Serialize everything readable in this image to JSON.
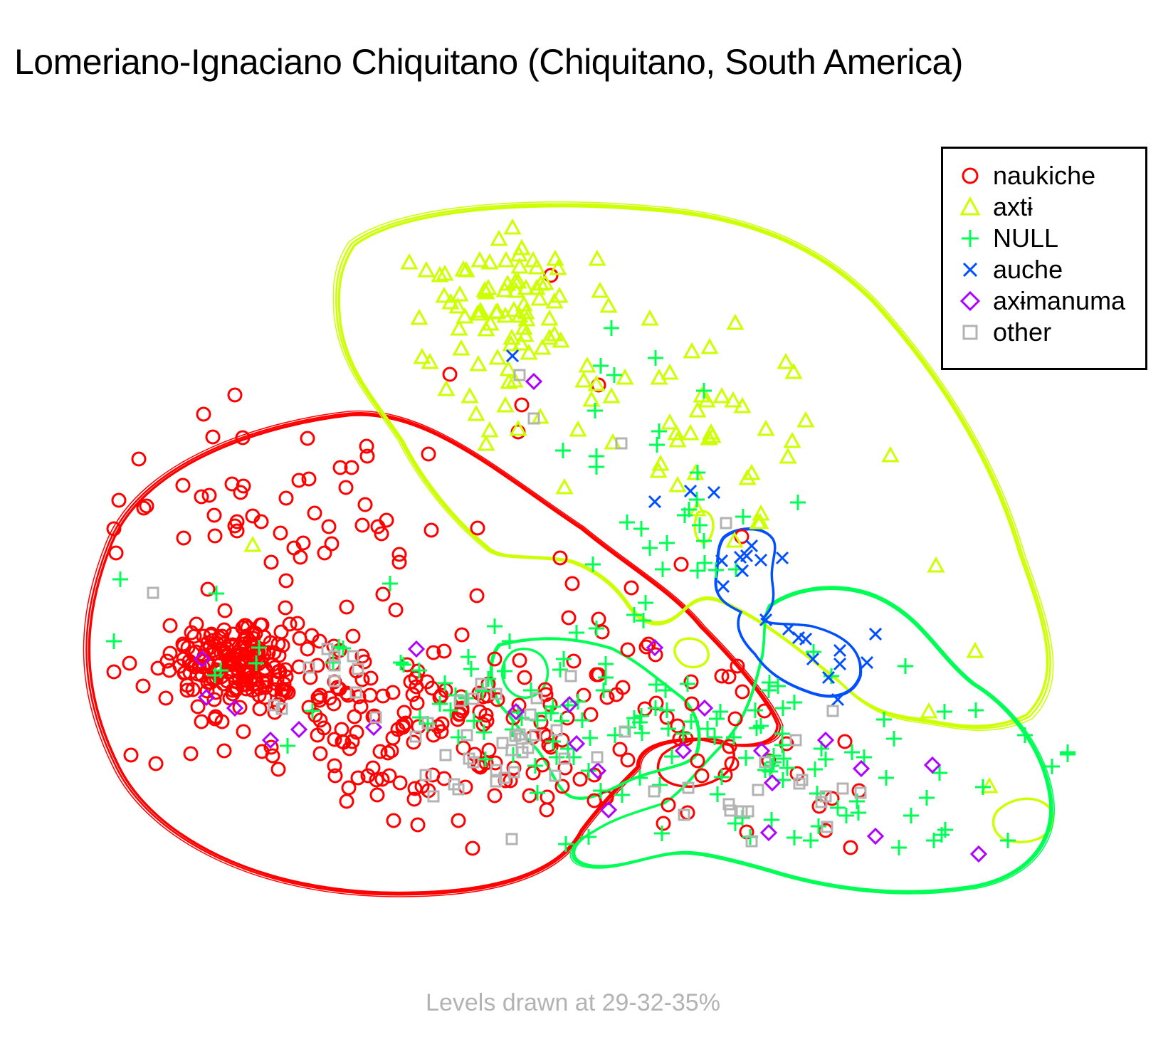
{
  "title": "Lomeriano-Ignaciano Chiquitano (Chiquitano, South America)",
  "footnote": "Levels drawn at 29-32-35%",
  "chart_data": {
    "type": "scatter",
    "title": "Lomeriano-Ignaciano Chiquitano (Chiquitano, South America)",
    "xlabel": "",
    "ylabel": "",
    "axes_visible": false,
    "grid": false,
    "legend_position": "top-right",
    "density_contour_levels": [
      "29%",
      "32%",
      "35%"
    ],
    "series": [
      {
        "name": "naukiche",
        "marker": "circle",
        "color": "#ff0000",
        "clusters": [
          {
            "cx": 330,
            "cy": 930,
            "sx": 50,
            "sy": 30,
            "n": 150
          },
          {
            "cx": 480,
            "cy": 990,
            "sx": 120,
            "sy": 70,
            "n": 130
          },
          {
            "cx": 420,
            "cy": 740,
            "sx": 120,
            "sy": 80,
            "n": 60
          },
          {
            "cx": 680,
            "cy": 1040,
            "sx": 130,
            "sy": 60,
            "n": 70
          },
          {
            "cx": 1020,
            "cy": 1060,
            "sx": 120,
            "sy": 60,
            "n": 30
          },
          {
            "cx": 880,
            "cy": 880,
            "sx": 90,
            "sy": 60,
            "n": 18
          },
          {
            "cx": 760,
            "cy": 480,
            "sx": 80,
            "sy": 60,
            "n": 5
          }
        ]
      },
      {
        "name": "axtɨ",
        "marker": "triangle",
        "color": "#ccff00",
        "clusters": [
          {
            "cx": 720,
            "cy": 420,
            "sx": 70,
            "sy": 50,
            "n": 70
          },
          {
            "cx": 860,
            "cy": 560,
            "sx": 130,
            "sy": 60,
            "n": 45
          },
          {
            "cx": 1020,
            "cy": 660,
            "sx": 60,
            "sy": 50,
            "n": 15
          }
        ],
        "extra_points": [
          [
            1315,
            795
          ],
          [
            1370,
            915
          ],
          [
            1390,
            1105
          ],
          [
            1305,
            1000
          ],
          [
            355,
            766
          ]
        ]
      },
      {
        "name": "NULL",
        "marker": "plus",
        "color": "#00ff55",
        "clusters": [
          {
            "cx": 1110,
            "cy": 1070,
            "sx": 150,
            "sy": 70,
            "n": 85
          },
          {
            "cx": 740,
            "cy": 980,
            "sx": 140,
            "sy": 60,
            "n": 50
          },
          {
            "cx": 950,
            "cy": 760,
            "sx": 90,
            "sy": 60,
            "n": 20
          },
          {
            "cx": 420,
            "cy": 930,
            "sx": 120,
            "sy": 60,
            "n": 15
          },
          {
            "cx": 900,
            "cy": 560,
            "sx": 60,
            "sy": 40,
            "n": 10
          }
        ]
      },
      {
        "name": "auche",
        "marker": "x",
        "color": "#0050ff",
        "clusters": [
          {
            "cx": 1050,
            "cy": 780,
            "sx": 30,
            "sy": 40,
            "n": 10
          },
          {
            "cx": 1140,
            "cy": 910,
            "sx": 40,
            "sy": 30,
            "n": 10
          }
        ],
        "extra_points": [
          [
            720,
            500
          ],
          [
            920,
            705
          ],
          [
            970,
            690
          ]
        ]
      },
      {
        "name": "axɨmanuma",
        "marker": "diamond",
        "color": "#b000ff",
        "points": [
          [
            284,
            926
          ],
          [
            290,
            980
          ],
          [
            330,
            995
          ],
          [
            380,
            1040
          ],
          [
            420,
            1025
          ],
          [
            525,
            1022
          ],
          [
            585,
            912
          ],
          [
            725,
            1000
          ],
          [
            750,
            536
          ],
          [
            800,
            990
          ],
          [
            810,
            1045
          ],
          [
            840,
            1083
          ],
          [
            855,
            1138
          ],
          [
            920,
            910
          ],
          [
            960,
            1055
          ],
          [
            990,
            995
          ],
          [
            1080,
            1170
          ],
          [
            1085,
            1100
          ],
          [
            1160,
            1040
          ],
          [
            1210,
            1080
          ],
          [
            1230,
            1175
          ],
          [
            1310,
            1075
          ],
          [
            1375,
            1200
          ],
          [
            1070,
            1055
          ]
        ]
      },
      {
        "name": "other",
        "marker": "square",
        "color": "#b3b3b3",
        "clusters": [
          {
            "cx": 700,
            "cy": 1030,
            "sx": 80,
            "sy": 50,
            "n": 35
          },
          {
            "cx": 1050,
            "cy": 1130,
            "sx": 130,
            "sy": 50,
            "n": 20
          },
          {
            "cx": 460,
            "cy": 960,
            "sx": 40,
            "sy": 30,
            "n": 10
          }
        ],
        "extra_points": [
          [
            215,
            833
          ],
          [
            750,
            588
          ],
          [
            730,
            527
          ],
          [
            873,
            623
          ],
          [
            1020,
            735
          ]
        ]
      }
    ],
    "contours": [
      {
        "series": "naukiche",
        "color": "#ff0000",
        "paths": [
          "M150,760 C200,640 380,590 490,578 C600,570 700,660 820,740 C880,790 950,830 990,880 C1040,930 1090,990 1100,1020 C1100,1060 1020,1050 990,1040 C940,1040 900,1050 900,1080 C880,1100 850,1130 820,1170 C790,1230 700,1260 560,1260 C360,1260 210,1180 160,1080 C100,960 110,860 150,760 Z",
          "M930,1060 C960,1035 1010,1030 1030,1050 C1040,1080 1010,1100 980,1105 C940,1110 910,1090 930,1060 Z"
        ]
      },
      {
        "series": "axtɨ",
        "color": "#ccff00",
        "paths": [
          "M490,340 C560,285 760,275 920,290 C1050,300 1150,340 1230,420 C1320,520 1400,640 1440,780 C1480,890 1500,960 1450,1010 C1390,1040 1330,1020 1290,1015 C1250,1010 1220,1000 1180,960 C1130,920 1080,880 1040,860 C1010,845 990,830 960,860 C930,890 900,880 880,850 C860,820 830,800 800,790 C740,780 700,790 680,770 C620,720 580,660 560,620 C520,560 480,520 470,450 C465,400 470,370 490,340 Z",
          "M955,900 C975,890 1000,905 995,925 C990,940 965,942 955,930 C945,920 945,908 955,900 Z",
          "M1400,1140 C1430,1110 1480,1120 1480,1150 C1480,1180 1440,1190 1410,1180 C1395,1170 1390,1155 1400,1140 Z",
          "M980,720 C1000,710 1010,740 995,760 C980,770 970,745 980,720 Z"
        ]
      },
      {
        "series": "NULL",
        "color": "#00ff55",
        "paths": [
          "M1080,850 C1120,820 1190,815 1240,840 C1300,870 1320,920 1370,960 C1420,990 1470,1050 1480,1120 C1490,1190 1440,1240 1360,1250 C1260,1265 1160,1250 1080,1225 C1010,1205 980,1200 960,1200 C920,1200 880,1220 840,1220 C790,1220 790,1190 830,1170 C860,1150 900,1140 930,1130 C960,1110 980,1080 1010,1050 C1050,1010 1060,960 1070,920 C1075,890 1070,870 1080,850 Z",
          "M720,915 C740,905 770,915 770,945 C770,975 740,990 720,975 C700,960 700,930 720,915 Z",
          "M700,905 C760,890 810,895 860,910 C900,930 920,950 960,980 C980,1000 990,1030 980,1060 C970,1080 920,1080 880,1100 C850,1115 820,1130 800,1120 C780,1110 770,1070 750,1050 C730,1030 720,1010 700,990 C690,970 680,930 700,905 Z"
        ]
      },
      {
        "series": "auche",
        "color": "#0050ff",
        "paths": [
          "M1015,755 C1030,740 1070,735 1085,755 C1095,770 1080,790 1085,820 C1090,850 1080,860 1070,870 C1080,880 1110,875 1140,880 C1180,890 1215,910 1210,950 C1200,980 1170,985 1140,975 C1110,965 1080,950 1060,920 C1040,900 1030,880 1040,860 C1020,850 1000,840 1005,810 C1008,790 1005,770 1015,755 Z"
        ]
      }
    ]
  },
  "legend": {
    "items": [
      {
        "label": "naukiche",
        "marker": "circle",
        "color": "#ff0000"
      },
      {
        "label": "axtɨ",
        "marker": "triangle",
        "color": "#ccff00"
      },
      {
        "label": "NULL",
        "marker": "plus",
        "color": "#00ff55"
      },
      {
        "label": "auche",
        "marker": "x",
        "color": "#0050ff"
      },
      {
        "label": "axɨmanuma",
        "marker": "diamond",
        "color": "#b000ff"
      },
      {
        "label": "other",
        "marker": "square",
        "color": "#b3b3b3"
      }
    ]
  }
}
